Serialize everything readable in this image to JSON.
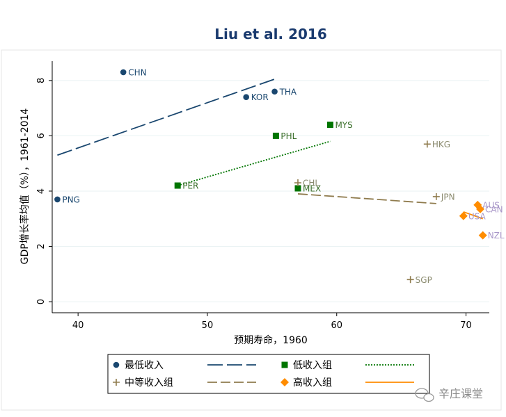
{
  "chart_data": {
    "type": "scatter",
    "title": "Liu et al. 2016",
    "xlabel": "预期寿命，1960",
    "ylabel": "GDP增长率均值（%），1961-2014",
    "xlim": [
      38,
      71.8
    ],
    "ylim": [
      -0.4,
      8.7
    ],
    "xticks": [
      40,
      50,
      60,
      70
    ],
    "yticks": [
      0,
      2,
      4,
      6,
      8
    ],
    "grid": true,
    "legend_position": "bottom",
    "colors": {
      "lowest": "#1a476f",
      "low": "#007500",
      "middle": "#8f7b4d",
      "high": "#ff8c00",
      "label_lowest": "#1a476f",
      "label_low": "#3a6e2a",
      "label_middle": "#8b8b6f",
      "label_high": "#a896c8",
      "title": "#1a3a6e"
    },
    "series": [
      {
        "name": "最低收入",
        "key": "lowest",
        "marker": "circle",
        "points": [
          {
            "label": "CHN",
            "x": 43.5,
            "y": 8.3
          },
          {
            "label": "KOR",
            "x": 53.0,
            "y": 7.4
          },
          {
            "label": "THA",
            "x": 55.2,
            "y": 7.6
          },
          {
            "label": "PNG",
            "x": 38.4,
            "y": 3.7
          }
        ],
        "fit": {
          "name": "最低收入 拟合",
          "x": [
            38.4,
            55.2
          ],
          "y": [
            5.3,
            8.05
          ],
          "dash": "22,6"
        }
      },
      {
        "name": "低收入组",
        "key": "low",
        "marker": "square",
        "points": [
          {
            "label": "MYS",
            "x": 59.5,
            "y": 6.4
          },
          {
            "label": "PHL",
            "x": 55.3,
            "y": 6.0
          },
          {
            "label": "PER",
            "x": 47.7,
            "y": 4.2
          },
          {
            "label": "MEX",
            "x": 57.0,
            "y": 4.1
          }
        ],
        "fit": {
          "name": "低收入组 拟合",
          "x": [
            47.7,
            59.5
          ],
          "y": [
            4.2,
            5.8
          ],
          "dash": "2,2"
        }
      },
      {
        "name": "中等收入组",
        "key": "middle",
        "marker": "plus",
        "points": [
          {
            "label": "HKG",
            "x": 67.0,
            "y": 5.7
          },
          {
            "label": "CHL",
            "x": 57.0,
            "y": 4.3
          },
          {
            "label": "JPN",
            "x": 67.7,
            "y": 3.8
          },
          {
            "label": "SGP",
            "x": 65.7,
            "y": 0.8
          }
        ],
        "fit": {
          "name": "中等收入组 拟合",
          "x": [
            57.0,
            67.7
          ],
          "y": [
            3.9,
            3.55
          ],
          "dash": "14,5"
        }
      },
      {
        "name": "高收入组",
        "key": "high",
        "marker": "diamond",
        "points": [
          {
            "label": "AUS",
            "x": 70.9,
            "y": 3.5
          },
          {
            "label": "CAN",
            "x": 71.1,
            "y": 3.35
          },
          {
            "label": "USA",
            "x": 69.8,
            "y": 3.1
          },
          {
            "label": "NZL",
            "x": 71.3,
            "y": 2.4
          }
        ],
        "fit": {
          "name": "高收入组 拟合",
          "x": [
            69.8,
            71.3
          ],
          "y": [
            3.25,
            3.0
          ],
          "dash": ""
        }
      }
    ],
    "legend": [
      {
        "label": "最低收入",
        "series": 0,
        "kind": "marker"
      },
      {
        "label": "",
        "series": 0,
        "kind": "line"
      },
      {
        "label": "低收入组",
        "series": 1,
        "kind": "marker"
      },
      {
        "label": "",
        "series": 1,
        "kind": "line"
      },
      {
        "label": "中等收入组",
        "series": 2,
        "kind": "marker"
      },
      {
        "label": "",
        "series": 2,
        "kind": "line"
      },
      {
        "label": "高收入组",
        "series": 3,
        "kind": "marker"
      },
      {
        "label": "",
        "series": 3,
        "kind": "line"
      }
    ]
  },
  "watermark": {
    "text": "辛庄课堂",
    "icon": "wechat-icon"
  }
}
